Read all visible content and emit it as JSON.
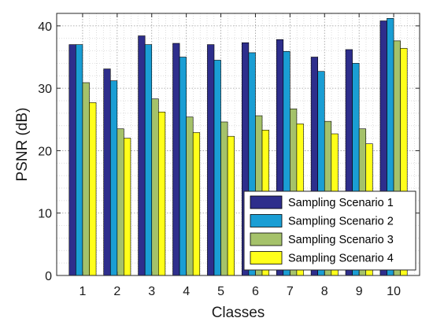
{
  "chart_data": {
    "type": "bar",
    "title": "",
    "xlabel": "Classes",
    "ylabel": "PSNR (dB)",
    "ylim": [
      0,
      42
    ],
    "yticks": [
      0,
      10,
      20,
      30,
      40
    ],
    "categories": [
      "1",
      "2",
      "3",
      "4",
      "5",
      "6",
      "7",
      "8",
      "9",
      "10"
    ],
    "grid": "major and minor (dotted)",
    "legend_position": "bottom-right",
    "series": [
      {
        "name": "Sampling Scenario 1",
        "color": "#2e2e8c",
        "values": [
          37.0,
          33.1,
          38.4,
          37.2,
          37.0,
          37.3,
          37.8,
          35.0,
          36.2,
          40.8
        ]
      },
      {
        "name": "Sampling Scenario 2",
        "color": "#1a9ed4",
        "values": [
          37.0,
          31.2,
          37.0,
          35.0,
          34.5,
          35.7,
          35.9,
          32.7,
          34.0,
          41.2
        ]
      },
      {
        "name": "Sampling Scenario 3",
        "color": "#a5c26a",
        "values": [
          30.9,
          23.5,
          28.3,
          25.4,
          24.6,
          25.6,
          26.7,
          24.7,
          23.5,
          37.6
        ]
      },
      {
        "name": "Sampling Scenario 4",
        "color": "#ffff1a",
        "values": [
          27.7,
          22.0,
          26.2,
          22.9,
          22.3,
          23.3,
          24.3,
          22.7,
          21.1,
          36.4
        ]
      }
    ]
  }
}
